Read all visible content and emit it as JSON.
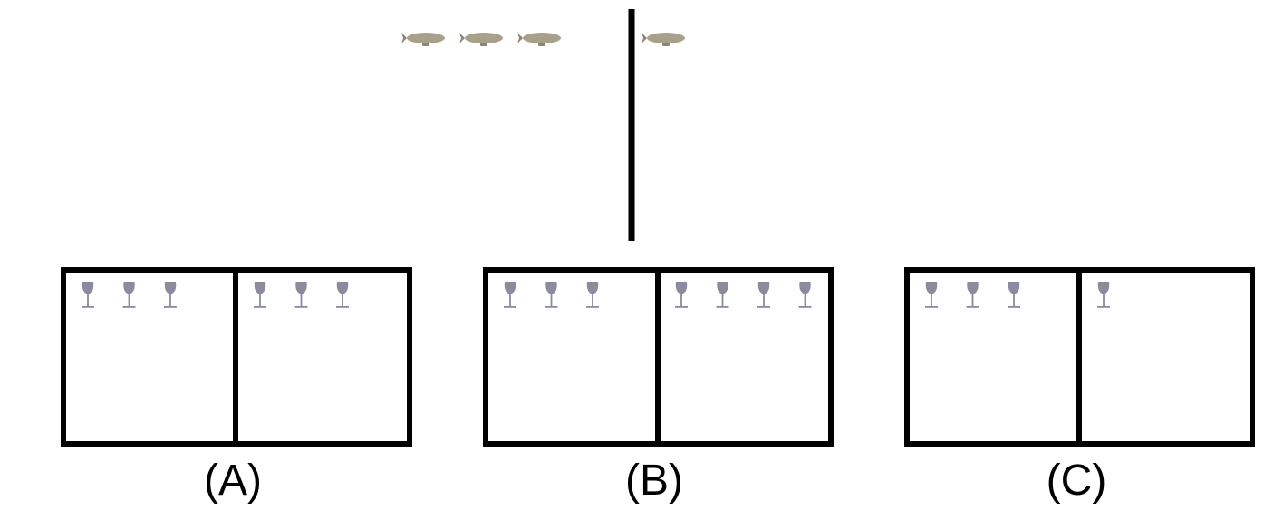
{
  "colors": {
    "airship": "#a8a08a",
    "airship_fin": "#8d8672",
    "glass": "#8b8b9e",
    "outline": "#000000",
    "background": "#ffffff"
  },
  "icons": {
    "top": "airship-icon",
    "options": "wine-glass-icon"
  },
  "top_groups": {
    "left_count": 3,
    "right_count": 1
  },
  "options": [
    {
      "label": "(A)",
      "left_count": 3,
      "right_count": 3
    },
    {
      "label": "(B)",
      "left_count": 3,
      "right_count": 4
    },
    {
      "label": "(C)",
      "left_count": 3,
      "right_count": 1
    }
  ]
}
